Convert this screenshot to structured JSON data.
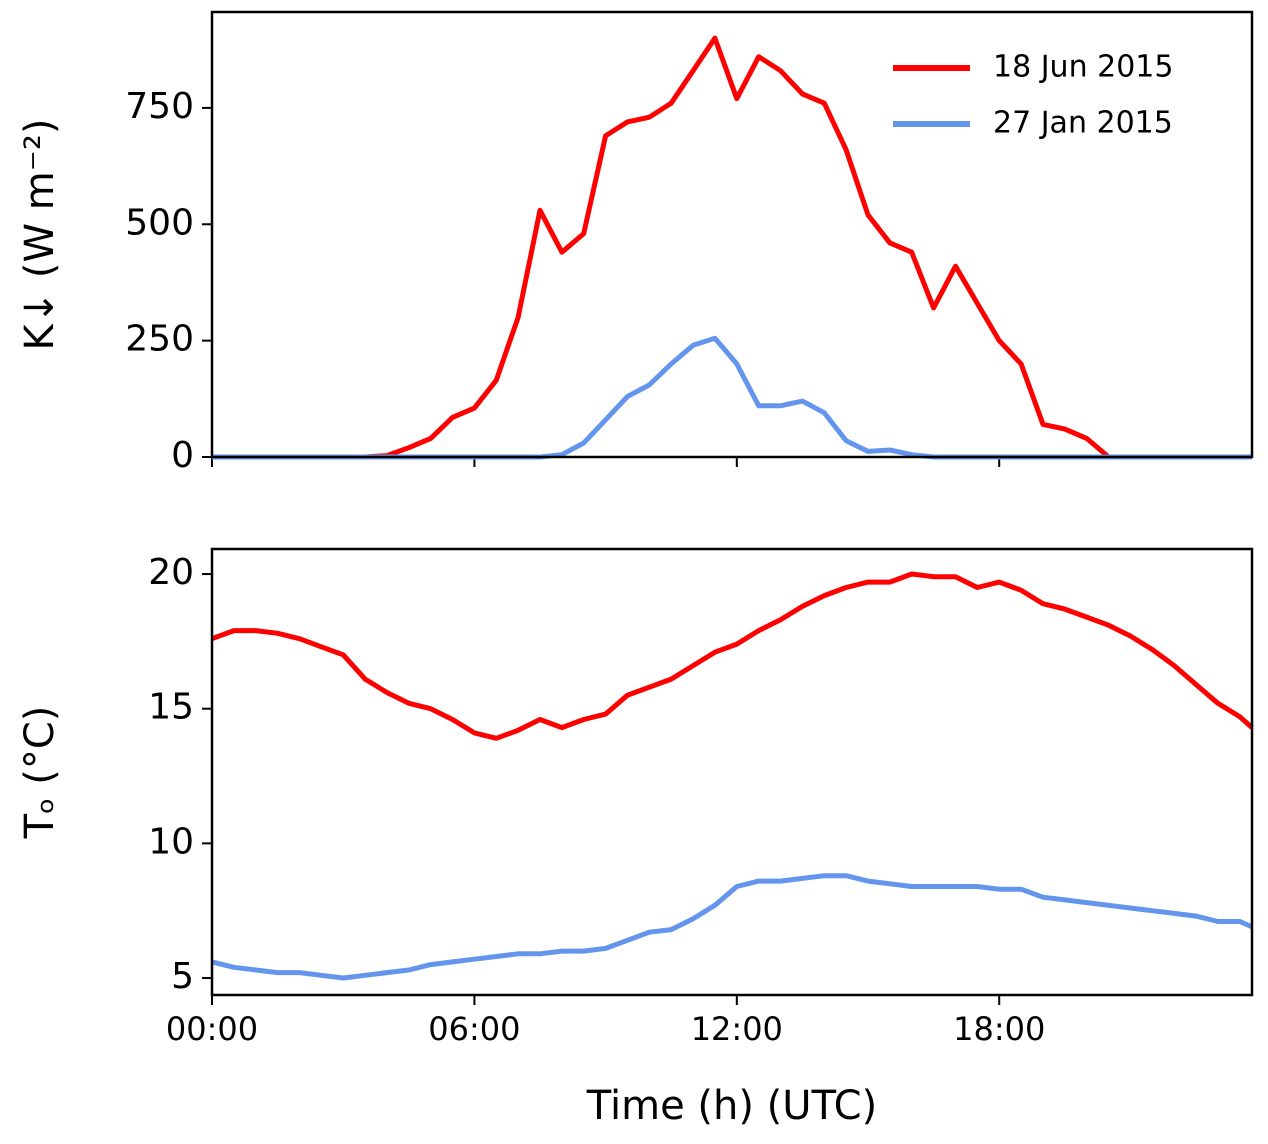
{
  "chart_data": [
    {
      "type": "line",
      "ylabel": "K↓  (W m⁻²)",
      "x": [
        0,
        0.5,
        1,
        1.5,
        2,
        2.5,
        3,
        3.5,
        4,
        4.5,
        5,
        5.5,
        6,
        6.5,
        7,
        7.5,
        8,
        8.5,
        9,
        9.5,
        10,
        10.5,
        11,
        11.5,
        12,
        12.5,
        13,
        13.5,
        14,
        14.5,
        15,
        15.5,
        16,
        16.5,
        17,
        17.5,
        18,
        18.5,
        19,
        19.5,
        20,
        20.5,
        21,
        21.5,
        22,
        22.5,
        23,
        23.5,
        23.78
      ],
      "series": [
        {
          "name": "18 Jun 2015",
          "color": "#ff0000",
          "values": [
            0,
            0,
            0,
            0,
            0,
            0,
            0,
            0,
            3,
            20,
            40,
            85,
            105,
            165,
            300,
            530,
            440,
            480,
            690,
            720,
            730,
            760,
            830,
            900,
            770,
            860,
            830,
            780,
            760,
            660,
            520,
            460,
            440,
            320,
            410,
            330,
            250,
            200,
            70,
            60,
            40,
            0,
            0,
            0,
            0,
            0,
            0,
            0,
            0
          ]
        },
        {
          "name": "27 Jan 2015",
          "color": "#6495ed",
          "values": [
            0,
            0,
            0,
            0,
            0,
            0,
            0,
            0,
            0,
            0,
            0,
            0,
            0,
            0,
            0,
            0,
            5,
            30,
            80,
            130,
            155,
            200,
            240,
            255,
            200,
            110,
            110,
            120,
            95,
            35,
            12,
            15,
            5,
            0,
            0,
            0,
            0,
            0,
            0,
            0,
            0,
            0,
            0,
            0,
            0,
            0,
            0,
            0,
            0
          ]
        }
      ],
      "xlim": [
        0,
        23.78
      ],
      "ylim": [
        0,
        956
      ],
      "yticks": [
        0,
        250,
        500,
        750
      ],
      "legend": "upper right"
    },
    {
      "type": "line",
      "ylabel": "Tₒ (°C)",
      "xlabel": "Time (h) (UTC)",
      "x": [
        0,
        0.5,
        1,
        1.5,
        2,
        2.5,
        3,
        3.5,
        4,
        4.5,
        5,
        5.5,
        6,
        6.5,
        7,
        7.5,
        8,
        8.5,
        9,
        9.5,
        10,
        10.5,
        11,
        11.5,
        12,
        12.5,
        13,
        13.5,
        14,
        14.5,
        15,
        15.5,
        16,
        16.5,
        17,
        17.5,
        18,
        18.5,
        19,
        19.5,
        20,
        20.5,
        21,
        21.5,
        22,
        22.5,
        23,
        23.5,
        23.78
      ],
      "series": [
        {
          "name": "18 Jun 2015",
          "color": "#ff0000",
          "values": [
            17.6,
            17.9,
            17.9,
            17.8,
            17.6,
            17.3,
            17.0,
            16.1,
            15.6,
            15.2,
            15.0,
            14.6,
            14.1,
            13.9,
            14.2,
            14.6,
            14.3,
            14.6,
            14.8,
            15.5,
            15.8,
            16.1,
            16.6,
            17.1,
            17.4,
            17.9,
            18.3,
            18.8,
            19.2,
            19.5,
            19.7,
            19.7,
            20.0,
            19.9,
            19.9,
            19.5,
            19.7,
            19.4,
            18.9,
            18.7,
            18.4,
            18.1,
            17.7,
            17.2,
            16.6,
            15.9,
            15.2,
            14.7,
            14.3
          ]
        },
        {
          "name": "27 Jan 2015",
          "color": "#6495ed",
          "values": [
            5.6,
            5.4,
            5.3,
            5.2,
            5.2,
            5.1,
            5.0,
            5.1,
            5.2,
            5.3,
            5.5,
            5.6,
            5.7,
            5.8,
            5.9,
            5.9,
            6.0,
            6.0,
            6.1,
            6.4,
            6.7,
            6.8,
            7.2,
            7.7,
            8.4,
            8.6,
            8.6,
            8.7,
            8.8,
            8.8,
            8.6,
            8.5,
            8.4,
            8.4,
            8.4,
            8.4,
            8.3,
            8.3,
            8.0,
            7.9,
            7.8,
            7.7,
            7.6,
            7.5,
            7.4,
            7.3,
            7.1,
            7.1,
            6.9
          ]
        }
      ],
      "xlim": [
        0,
        23.78
      ],
      "ylim": [
        4.37,
        20.93
      ],
      "yticks": [
        5,
        10,
        15,
        20
      ],
      "xticks": [
        {
          "value": 0,
          "label": "00:00"
        },
        {
          "value": 6,
          "label": "06:00"
        },
        {
          "value": 12,
          "label": "12:00"
        },
        {
          "value": 18,
          "label": "18:00"
        }
      ]
    }
  ]
}
